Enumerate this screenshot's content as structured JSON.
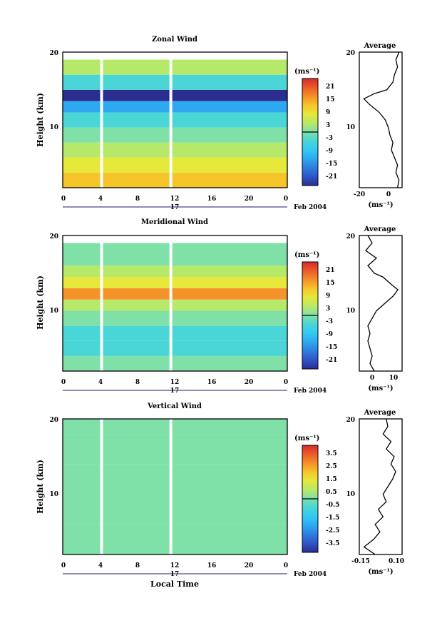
{
  "colors": {
    "scale": [
      "#2b2d8f",
      "#2f52c8",
      "#2e7fe0",
      "#2ea8f0",
      "#33c8f2",
      "#4ad6d6",
      "#7fe0a8",
      "#b6e86a",
      "#e6e83a",
      "#f5c52a",
      "#f5922a",
      "#ea5a2a",
      "#d42a2a"
    ]
  },
  "panels": [
    {
      "title": "Zonal Wind",
      "ylabel": "Height (km)",
      "y_ticks": [
        "20",
        "10"
      ],
      "x_ticks": [
        "0",
        "4",
        "8",
        "12",
        "16",
        "20",
        "0"
      ],
      "date_day": "17",
      "date_label": "Feb 2004",
      "colorbar_unit": "(ms⁻¹)",
      "colorbar_labels": [
        "21",
        "15",
        "9",
        "3",
        "-3",
        "-9",
        "-15",
        "-21"
      ],
      "avg_title": "Average",
      "avg_y_ticks": [
        "20",
        "10"
      ],
      "avg_x_ticks": [
        "-20",
        "0"
      ],
      "avg_unit": "(ms⁻¹)",
      "chart_data": {
        "type": "heatmap",
        "x_range": [
          0,
          24
        ],
        "y_range": [
          2,
          20
        ],
        "z_range": [
          -24,
          24
        ],
        "bands": [
          {
            "h": [
              2,
              4
            ],
            "v": 10
          },
          {
            "h": [
              4,
              6
            ],
            "v": 6
          },
          {
            "h": [
              6,
              8
            ],
            "v": 3
          },
          {
            "h": [
              8,
              10
            ],
            "v": 1
          },
          {
            "h": [
              10,
              12
            ],
            "v": -4
          },
          {
            "h": [
              12,
              13.5
            ],
            "v": -12
          },
          {
            "h": [
              13.5,
              15
            ],
            "v": -22
          },
          {
            "h": [
              15,
              17
            ],
            "v": -2
          },
          {
            "h": [
              17,
              19
            ],
            "v": 2
          }
        ]
      },
      "average_profile": {
        "type": "line",
        "xlim": [
          -20,
          8
        ],
        "ylim": [
          2,
          20
        ],
        "points": [
          [
            5,
            2
          ],
          [
            6,
            3
          ],
          [
            4,
            4
          ],
          [
            5,
            5
          ],
          [
            3,
            6
          ],
          [
            1,
            7
          ],
          [
            2,
            8
          ],
          [
            0,
            9
          ],
          [
            -1,
            10
          ],
          [
            -3,
            11
          ],
          [
            -7,
            12
          ],
          [
            -13,
            13
          ],
          [
            -17,
            13.8
          ],
          [
            -10,
            14.5
          ],
          [
            -2,
            15
          ],
          [
            2,
            16
          ],
          [
            3,
            17
          ],
          [
            5,
            18
          ],
          [
            4,
            19
          ],
          [
            6,
            20
          ]
        ]
      }
    },
    {
      "title": "Meridional Wind",
      "ylabel": "Height (km)",
      "y_ticks": [
        "20",
        "10"
      ],
      "x_ticks": [
        "0",
        "4",
        "8",
        "12",
        "16",
        "20",
        "0"
      ],
      "date_day": "17",
      "date_label": "Feb 2004",
      "colorbar_unit": "(ms⁻¹)",
      "colorbar_labels": [
        "21",
        "15",
        "9",
        "3",
        "-3",
        "-9",
        "-15",
        "-21"
      ],
      "avg_title": "Average",
      "avg_y_ticks": [
        "20",
        "10"
      ],
      "avg_x_ticks": [
        "0",
        "10"
      ],
      "avg_unit": "(ms⁻¹)",
      "chart_data": {
        "type": "heatmap",
        "x_range": [
          0,
          24
        ],
        "y_range": [
          2,
          20
        ],
        "z_range": [
          -24,
          24
        ],
        "bands": [
          {
            "h": [
              2,
              4
            ],
            "v": 0
          },
          {
            "h": [
              4,
              6
            ],
            "v": -3
          },
          {
            "h": [
              6,
              8
            ],
            "v": -2
          },
          {
            "h": [
              8,
              10
            ],
            "v": -1
          },
          {
            "h": [
              10,
              11.5
            ],
            "v": 4
          },
          {
            "h": [
              11.5,
              13
            ],
            "v": 14
          },
          {
            "h": [
              13,
              14.5
            ],
            "v": 9
          },
          {
            "h": [
              14.5,
              16
            ],
            "v": 3
          },
          {
            "h": [
              16,
              19
            ],
            "v": 1
          }
        ]
      },
      "average_profile": {
        "type": "line",
        "xlim": [
          -5,
          15
        ],
        "ylim": [
          2,
          20
        ],
        "points": [
          [
            2,
            2
          ],
          [
            0,
            3
          ],
          [
            1,
            4
          ],
          [
            0,
            5
          ],
          [
            -1,
            6
          ],
          [
            0,
            7
          ],
          [
            -1,
            8
          ],
          [
            1,
            9
          ],
          [
            3,
            10
          ],
          [
            7,
            11
          ],
          [
            11,
            12
          ],
          [
            13,
            12.8
          ],
          [
            10,
            13.5
          ],
          [
            6,
            14.5
          ],
          [
            2,
            15
          ],
          [
            -1,
            16
          ],
          [
            3,
            17
          ],
          [
            -2,
            18
          ],
          [
            1,
            19
          ],
          [
            -1,
            20
          ]
        ]
      }
    },
    {
      "title": "Vertical Wind",
      "ylabel": "Height (km)",
      "y_ticks": [
        "20",
        "10"
      ],
      "x_ticks": [
        "0",
        "4",
        "8",
        "12",
        "16",
        "20",
        "0"
      ],
      "date_day": "17",
      "date_label": "Feb 2004",
      "colorbar_unit": "(ms⁻¹)",
      "colorbar_labels": [
        "3.5",
        "2.5",
        "1.5",
        "0.5",
        "-0.5",
        "-1.5",
        "-2.5",
        "-3.5"
      ],
      "avg_title": "Average",
      "avg_y_ticks": [
        "20",
        "10"
      ],
      "avg_x_ticks": [
        "-0.15",
        "0.10"
      ],
      "avg_unit": "(ms⁻¹)",
      "xlabel": "Local Time",
      "chart_data": {
        "type": "heatmap",
        "x_range": [
          0,
          24
        ],
        "y_range": [
          2,
          20
        ],
        "z_range": [
          -4,
          4
        ],
        "bands": [
          {
            "h": [
              2,
              6
            ],
            "v": -0.3
          },
          {
            "h": [
              6,
              10
            ],
            "v": 0.2
          },
          {
            "h": [
              10,
              14
            ],
            "v": 0.1
          },
          {
            "h": [
              14,
              18
            ],
            "v": 0.3
          },
          {
            "h": [
              18,
              20
            ],
            "v": 0.0
          }
        ]
      },
      "average_profile": {
        "type": "line",
        "xlim": [
          -0.15,
          0.12
        ],
        "ylim": [
          2,
          20
        ],
        "points": [
          [
            -0.05,
            2
          ],
          [
            -0.12,
            3
          ],
          [
            -0.06,
            4
          ],
          [
            -0.02,
            5
          ],
          [
            -0.05,
            6
          ],
          [
            0.0,
            7
          ],
          [
            -0.03,
            8
          ],
          [
            0.02,
            9
          ],
          [
            0.0,
            10
          ],
          [
            0.03,
            11
          ],
          [
            0.06,
            12
          ],
          [
            0.08,
            13
          ],
          [
            0.05,
            14
          ],
          [
            0.07,
            15
          ],
          [
            0.02,
            16
          ],
          [
            0.05,
            17
          ],
          [
            0.0,
            18
          ],
          [
            0.03,
            19
          ],
          [
            0.02,
            20
          ]
        ]
      }
    }
  ]
}
